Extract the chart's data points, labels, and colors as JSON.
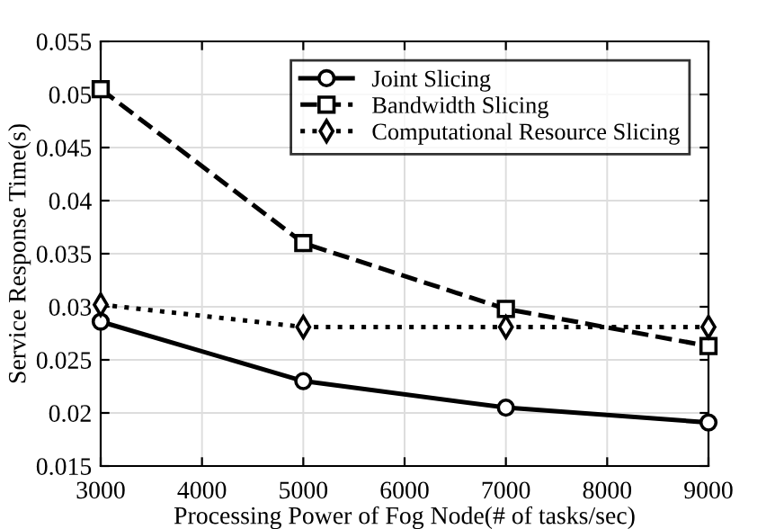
{
  "chart_data": {
    "type": "line",
    "xlabel": "Processing Power of Fog Node(# of tasks/sec)",
    "ylabel": "Service Response Time(s)",
    "x": [
      3000,
      5000,
      7000,
      9000
    ],
    "series": [
      {
        "name": "Joint Slicing",
        "color": "#000000",
        "marker": "circle",
        "line_style": "solid",
        "values": [
          0.0286,
          0.023,
          0.0205,
          0.0191
        ]
      },
      {
        "name": "Bandwidth Slicing",
        "color": "#000000",
        "marker": "square",
        "line_style": "dashed",
        "values": [
          0.0505,
          0.036,
          0.0298,
          0.0263
        ]
      },
      {
        "name": "Computational Resource Slicing",
        "color": "#000000",
        "marker": "diamond",
        "line_style": "dotted",
        "values": [
          0.0302,
          0.0281,
          0.0281,
          0.0281
        ]
      }
    ],
    "xlim": [
      3000,
      9000
    ],
    "xticks": [
      3000,
      4000,
      5000,
      6000,
      7000,
      8000,
      9000
    ],
    "ylim": [
      0.015,
      0.055
    ],
    "yticks": [
      {
        "value": 0.015,
        "label": "0.015"
      },
      {
        "value": 0.02,
        "label": "0.02"
      },
      {
        "value": 0.025,
        "label": "0.025"
      },
      {
        "value": 0.03,
        "label": "0.03"
      },
      {
        "value": 0.035,
        "label": "0.035"
      },
      {
        "value": 0.04,
        "label": "0.04"
      },
      {
        "value": 0.045,
        "label": "0.045"
      },
      {
        "value": 0.05,
        "label": "0.05"
      },
      {
        "value": 0.055,
        "label": "0.055"
      }
    ],
    "grid": true,
    "legend": "top right"
  }
}
